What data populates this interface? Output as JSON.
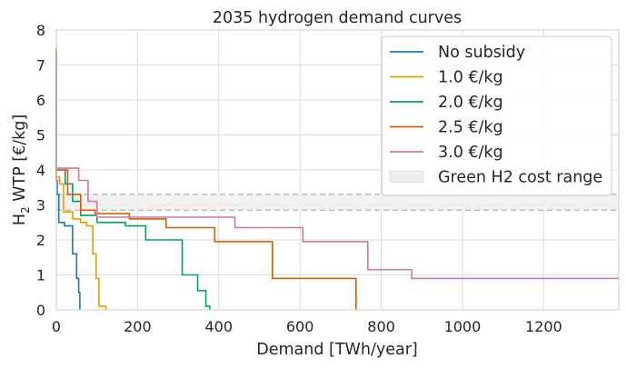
{
  "chart_data": {
    "type": "line",
    "title": "2035 hydrogen demand curves",
    "xlabel": "Demand [TWh/year]",
    "ylabel_main": "H",
    "ylabel_sub": "2",
    "ylabel_rest": " WTP [€/kg]",
    "xlim": [
      0,
      1385
    ],
    "ylim": [
      0,
      8
    ],
    "xticks": [
      0,
      200,
      400,
      600,
      800,
      1000,
      1200
    ],
    "yticks": [
      0,
      1,
      2,
      3,
      4,
      5,
      6,
      7,
      8
    ],
    "grid": true,
    "legend_position": "top-right",
    "band": {
      "name": "Green H2 cost range",
      "ymin": 2.85,
      "ymax": 3.3,
      "color": "#cccccc"
    },
    "series": [
      {
        "name": "No subsidy",
        "color": "#1f77b4",
        "x": [
          0,
          0,
          2,
          2,
          6,
          6,
          20,
          20,
          40,
          40,
          50,
          50,
          55,
          55,
          58,
          58
        ],
        "y": [
          7.3,
          3.7,
          3.7,
          3.3,
          3.3,
          2.5,
          2.5,
          2.4,
          2.4,
          1.6,
          1.6,
          0.9,
          0.9,
          0.5,
          0.5,
          0
        ]
      },
      {
        "name": "1.0 €/kg",
        "color": "#e69f00",
        "x": [
          0,
          0,
          8,
          8,
          18,
          18,
          40,
          40,
          60,
          60,
          75,
          75,
          90,
          90,
          98,
          98,
          105,
          105,
          122,
          122
        ],
        "y": [
          7.4,
          3.8,
          3.8,
          3.6,
          3.6,
          2.8,
          2.8,
          2.6,
          2.6,
          2.5,
          2.5,
          2.4,
          2.4,
          1.6,
          1.6,
          0.9,
          0.9,
          0.1,
          0.1,
          0
        ]
      },
      {
        "name": "2.0 €/kg",
        "color": "#009e73",
        "x": [
          0,
          0,
          22,
          22,
          40,
          40,
          60,
          60,
          100,
          100,
          170,
          170,
          220,
          220,
          310,
          310,
          348,
          348,
          368,
          368,
          378,
          378
        ],
        "y": [
          7.4,
          4.0,
          4.0,
          3.6,
          3.6,
          3.1,
          3.1,
          2.7,
          2.7,
          2.5,
          2.5,
          2.4,
          2.4,
          2.0,
          2.0,
          1.0,
          1.0,
          0.55,
          0.55,
          0.1,
          0.1,
          0
        ]
      },
      {
        "name": "2.5 €/kg",
        "color": "#d55e00",
        "x": [
          0,
          0,
          28,
          28,
          60,
          60,
          95,
          95,
          180,
          180,
          270,
          270,
          390,
          390,
          532,
          532,
          738,
          738
        ],
        "y": [
          7.5,
          4.0,
          4.0,
          3.3,
          3.3,
          2.85,
          2.85,
          2.75,
          2.75,
          2.6,
          2.6,
          2.35,
          2.35,
          1.95,
          1.95,
          0.9,
          0.9,
          0
        ]
      },
      {
        "name": "3.0 €/kg",
        "color": "#cc79a7",
        "x": [
          0,
          0,
          55,
          55,
          78,
          78,
          100,
          100,
          440,
          440,
          607,
          607,
          767,
          767,
          875,
          875,
          1385
        ],
        "y": [
          7.35,
          4.05,
          4.05,
          3.7,
          3.7,
          3.1,
          3.1,
          2.65,
          2.65,
          2.35,
          2.35,
          1.95,
          1.95,
          1.15,
          1.15,
          0.9,
          0.9
        ]
      }
    ]
  }
}
